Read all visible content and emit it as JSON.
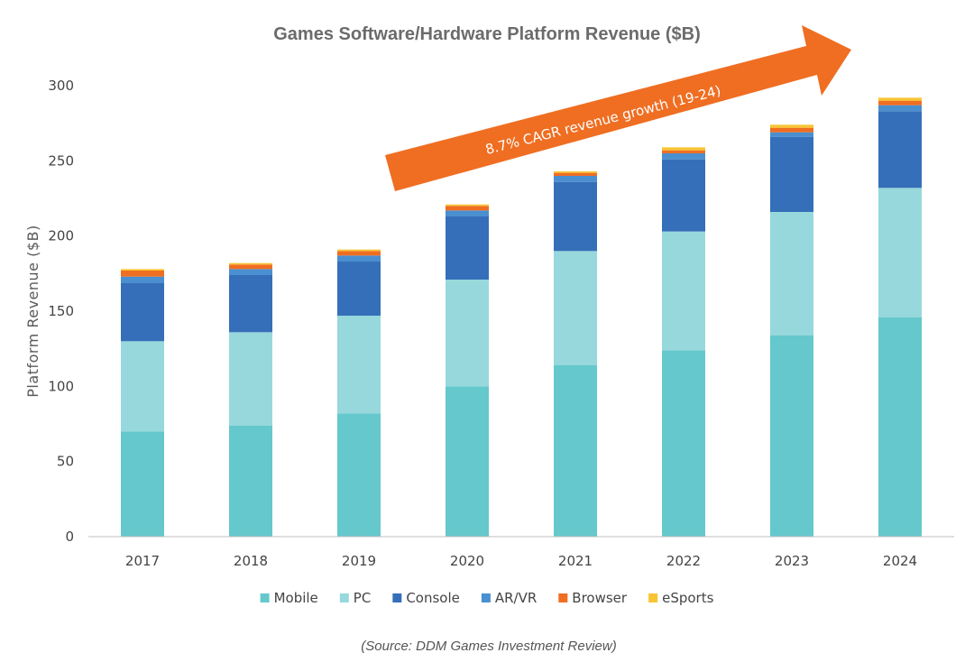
{
  "chart_data": {
    "type": "bar",
    "stacked": true,
    "title": "Games Software/Hardware Platform Revenue ($B)",
    "xlabel": "",
    "ylabel": "Platform Revenue ($B)",
    "ylim": [
      0,
      300
    ],
    "yticks": [
      0,
      50,
      100,
      150,
      200,
      250,
      300
    ],
    "grid": false,
    "legend_position": "bottom",
    "categories": [
      "2017",
      "2018",
      "2019",
      "2020",
      "2021",
      "2022",
      "2023",
      "2024"
    ],
    "series": [
      {
        "name": "Mobile",
        "color": "#65c8cc",
        "values": [
          70,
          74,
          82,
          100,
          114,
          124,
          134,
          146
        ]
      },
      {
        "name": "PC",
        "color": "#97d8dc",
        "values": [
          60,
          62,
          65,
          71,
          76,
          79,
          82,
          86
        ]
      },
      {
        "name": "Console",
        "color": "#356fb9",
        "values": [
          39,
          38,
          36,
          42,
          46,
          48,
          50,
          51
        ]
      },
      {
        "name": "AR/VR",
        "color": "#4a8fd0",
        "values": [
          4,
          4,
          4,
          4,
          4,
          4,
          3,
          4
        ]
      },
      {
        "name": "Browser",
        "color": "#ef6e22",
        "values": [
          4,
          3,
          3,
          3,
          2,
          2,
          3,
          3
        ]
      },
      {
        "name": "eSports",
        "color": "#f8c532",
        "values": [
          1,
          1,
          1,
          1,
          1,
          2,
          2,
          2
        ]
      }
    ],
    "annotations": [
      {
        "text": "8.7% CAGR revenue growth (19-24)",
        "style": "orange-arrow",
        "color": "#ef6e22"
      }
    ],
    "source": "(Source: DDM Games Investment Review)"
  }
}
